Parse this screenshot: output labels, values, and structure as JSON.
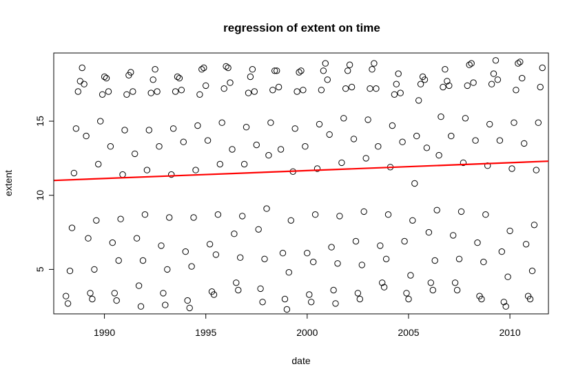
{
  "chart_data": {
    "type": "scatter",
    "title": "regression of extent on time",
    "xlabel": "date",
    "ylabel": "extent",
    "xlim": [
      1987.5,
      2011.9
    ],
    "ylim": [
      2.0,
      19.6
    ],
    "x_ticks": [
      1990,
      1995,
      2000,
      2005,
      2010
    ],
    "y_ticks": [
      5,
      10,
      15
    ],
    "point_style": "open-circle",
    "regression_line": {
      "color": "#ff0000",
      "x": [
        1987.5,
        2011.9
      ],
      "y": [
        11.0,
        12.3
      ]
    },
    "points": [
      [
        1988.1,
        3.2
      ],
      [
        1988.2,
        2.7
      ],
      [
        1988.3,
        4.9
      ],
      [
        1988.4,
        7.8
      ],
      [
        1988.5,
        11.5
      ],
      [
        1988.6,
        14.5
      ],
      [
        1988.7,
        17.0
      ],
      [
        1988.8,
        17.7
      ],
      [
        1988.9,
        18.6
      ],
      [
        1989.0,
        17.5
      ],
      [
        1989.1,
        14.0
      ],
      [
        1989.2,
        7.1
      ],
      [
        1989.3,
        3.4
      ],
      [
        1989.4,
        3.0
      ],
      [
        1989.5,
        5.0
      ],
      [
        1989.6,
        8.3
      ],
      [
        1989.7,
        12.1
      ],
      [
        1989.8,
        15.0
      ],
      [
        1989.9,
        16.8
      ],
      [
        1990.0,
        18.0
      ],
      [
        1990.1,
        17.9
      ],
      [
        1990.2,
        17.0
      ],
      [
        1990.3,
        13.3
      ],
      [
        1990.4,
        6.8
      ],
      [
        1990.5,
        3.4
      ],
      [
        1990.6,
        2.9
      ],
      [
        1990.7,
        5.6
      ],
      [
        1990.8,
        8.4
      ],
      [
        1990.9,
        11.4
      ],
      [
        1991.0,
        14.4
      ],
      [
        1991.1,
        16.8
      ],
      [
        1991.2,
        18.1
      ],
      [
        1991.3,
        18.3
      ],
      [
        1991.4,
        17.0
      ],
      [
        1991.5,
        12.8
      ],
      [
        1991.6,
        7.1
      ],
      [
        1991.7,
        3.9
      ],
      [
        1991.8,
        2.5
      ],
      [
        1991.9,
        5.6
      ],
      [
        1992.0,
        8.7
      ],
      [
        1992.1,
        11.7
      ],
      [
        1992.2,
        14.4
      ],
      [
        1992.3,
        16.9
      ],
      [
        1992.4,
        17.8
      ],
      [
        1992.5,
        18.5
      ],
      [
        1992.6,
        17.0
      ],
      [
        1992.7,
        13.3
      ],
      [
        1992.8,
        6.6
      ],
      [
        1992.9,
        3.4
      ],
      [
        1993.0,
        2.6
      ],
      [
        1993.1,
        5.0
      ],
      [
        1993.2,
        8.5
      ],
      [
        1993.3,
        11.4
      ],
      [
        1993.4,
        14.5
      ],
      [
        1993.5,
        17.0
      ],
      [
        1993.6,
        18.0
      ],
      [
        1993.7,
        17.9
      ],
      [
        1993.8,
        17.1
      ],
      [
        1993.9,
        13.6
      ],
      [
        1994.0,
        6.2
      ],
      [
        1994.1,
        2.9
      ],
      [
        1994.2,
        2.4
      ],
      [
        1994.3,
        5.2
      ],
      [
        1994.4,
        8.5
      ],
      [
        1994.5,
        11.7
      ],
      [
        1994.6,
        14.7
      ],
      [
        1994.7,
        16.8
      ],
      [
        1994.8,
        18.5
      ],
      [
        1994.9,
        18.6
      ],
      [
        1995.0,
        17.4
      ],
      [
        1995.1,
        13.7
      ],
      [
        1995.2,
        6.7
      ],
      [
        1995.3,
        3.5
      ],
      [
        1995.4,
        3.3
      ],
      [
        1995.5,
        6.0
      ],
      [
        1995.6,
        8.7
      ],
      [
        1995.7,
        12.1
      ],
      [
        1995.8,
        14.9
      ],
      [
        1995.9,
        17.2
      ],
      [
        1996.0,
        18.7
      ],
      [
        1996.1,
        18.6
      ],
      [
        1996.2,
        17.6
      ],
      [
        1996.3,
        13.1
      ],
      [
        1996.4,
        7.4
      ],
      [
        1996.5,
        4.1
      ],
      [
        1996.6,
        3.6
      ],
      [
        1996.7,
        5.8
      ],
      [
        1996.8,
        8.6
      ],
      [
        1996.9,
        12.1
      ],
      [
        1997.0,
        14.6
      ],
      [
        1997.1,
        16.9
      ],
      [
        1997.2,
        18.0
      ],
      [
        1997.3,
        18.5
      ],
      [
        1997.4,
        17.0
      ],
      [
        1997.5,
        13.4
      ],
      [
        1997.6,
        7.7
      ],
      [
        1997.7,
        3.7
      ],
      [
        1997.8,
        2.8
      ],
      [
        1997.9,
        5.7
      ],
      [
        1998.0,
        9.1
      ],
      [
        1998.1,
        12.7
      ],
      [
        1998.2,
        14.9
      ],
      [
        1998.3,
        17.1
      ],
      [
        1998.4,
        18.4
      ],
      [
        1998.5,
        18.4
      ],
      [
        1998.6,
        17.3
      ],
      [
        1998.7,
        13.1
      ],
      [
        1998.8,
        6.1
      ],
      [
        1998.9,
        3.0
      ],
      [
        1999.0,
        2.3
      ],
      [
        1999.1,
        4.8
      ],
      [
        1999.2,
        8.3
      ],
      [
        1999.3,
        11.6
      ],
      [
        1999.4,
        14.5
      ],
      [
        1999.5,
        17.0
      ],
      [
        1999.6,
        18.3
      ],
      [
        1999.7,
        18.4
      ],
      [
        1999.8,
        17.1
      ],
      [
        1999.9,
        13.3
      ],
      [
        2000.0,
        6.1
      ],
      [
        2000.1,
        3.3
      ],
      [
        2000.2,
        2.8
      ],
      [
        2000.3,
        5.5
      ],
      [
        2000.4,
        8.7
      ],
      [
        2000.5,
        11.8
      ],
      [
        2000.6,
        14.8
      ],
      [
        2000.7,
        17.1
      ],
      [
        2000.8,
        18.4
      ],
      [
        2000.9,
        18.9
      ],
      [
        2001.0,
        17.8
      ],
      [
        2001.1,
        14.1
      ],
      [
        2001.2,
        6.5
      ],
      [
        2001.3,
        3.6
      ],
      [
        2001.4,
        2.7
      ],
      [
        2001.5,
        5.4
      ],
      [
        2001.6,
        8.6
      ],
      [
        2001.7,
        12.2
      ],
      [
        2001.8,
        15.2
      ],
      [
        2001.9,
        17.2
      ],
      [
        2002.0,
        18.4
      ],
      [
        2002.1,
        18.8
      ],
      [
        2002.2,
        17.3
      ],
      [
        2002.3,
        13.8
      ],
      [
        2002.4,
        6.9
      ],
      [
        2002.5,
        3.4
      ],
      [
        2002.6,
        3.0
      ],
      [
        2002.7,
        5.3
      ],
      [
        2002.8,
        8.9
      ],
      [
        2002.9,
        12.5
      ],
      [
        2003.0,
        15.1
      ],
      [
        2003.1,
        17.2
      ],
      [
        2003.2,
        18.5
      ],
      [
        2003.3,
        18.9
      ],
      [
        2003.4,
        17.2
      ],
      [
        2003.5,
        13.3
      ],
      [
        2003.6,
        6.6
      ],
      [
        2003.7,
        4.1
      ],
      [
        2003.8,
        3.8
      ],
      [
        2003.9,
        5.7
      ],
      [
        2004.0,
        8.7
      ],
      [
        2004.1,
        11.9
      ],
      [
        2004.2,
        14.7
      ],
      [
        2004.3,
        16.8
      ],
      [
        2004.4,
        17.5
      ],
      [
        2004.5,
        18.2
      ],
      [
        2004.6,
        16.9
      ],
      [
        2004.7,
        13.6
      ],
      [
        2004.8,
        6.9
      ],
      [
        2004.9,
        3.4
      ],
      [
        2005.0,
        3.0
      ],
      [
        2005.1,
        4.6
      ],
      [
        2005.2,
        8.3
      ],
      [
        2005.3,
        10.8
      ],
      [
        2005.4,
        14.0
      ],
      [
        2005.5,
        16.4
      ],
      [
        2005.6,
        17.5
      ],
      [
        2005.7,
        18.0
      ],
      [
        2005.8,
        17.8
      ],
      [
        2005.9,
        13.2
      ],
      [
        2006.0,
        7.5
      ],
      [
        2006.1,
        4.1
      ],
      [
        2006.2,
        3.6
      ],
      [
        2006.3,
        5.6
      ],
      [
        2006.4,
        9.0
      ],
      [
        2006.5,
        12.7
      ],
      [
        2006.6,
        15.3
      ],
      [
        2006.7,
        17.3
      ],
      [
        2006.8,
        18.5
      ],
      [
        2006.9,
        17.7
      ],
      [
        2007.0,
        17.4
      ],
      [
        2007.1,
        14.0
      ],
      [
        2007.2,
        7.3
      ],
      [
        2007.3,
        4.1
      ],
      [
        2007.4,
        3.6
      ],
      [
        2007.5,
        5.7
      ],
      [
        2007.6,
        8.9
      ],
      [
        2007.7,
        12.2
      ],
      [
        2007.8,
        15.2
      ],
      [
        2007.9,
        17.4
      ],
      [
        2008.0,
        18.8
      ],
      [
        2008.1,
        18.9
      ],
      [
        2008.2,
        17.6
      ],
      [
        2008.3,
        13.7
      ],
      [
        2008.4,
        6.8
      ],
      [
        2008.5,
        3.2
      ],
      [
        2008.6,
        3.0
      ],
      [
        2008.7,
        5.5
      ],
      [
        2008.8,
        8.7
      ],
      [
        2008.9,
        12.0
      ],
      [
        2009.0,
        14.8
      ],
      [
        2009.1,
        17.5
      ],
      [
        2009.2,
        18.2
      ],
      [
        2009.3,
        19.1
      ],
      [
        2009.4,
        17.8
      ],
      [
        2009.5,
        13.7
      ],
      [
        2009.6,
        6.2
      ],
      [
        2009.7,
        2.8
      ],
      [
        2009.8,
        2.5
      ],
      [
        2009.9,
        4.5
      ],
      [
        2010.0,
        7.6
      ],
      [
        2010.1,
        11.8
      ],
      [
        2010.2,
        14.9
      ],
      [
        2010.3,
        17.1
      ],
      [
        2010.4,
        18.9
      ],
      [
        2010.5,
        19.0
      ],
      [
        2010.6,
        17.9
      ],
      [
        2010.7,
        13.5
      ],
      [
        2010.8,
        6.7
      ],
      [
        2010.9,
        3.2
      ],
      [
        2011.0,
        3.0
      ],
      [
        2011.1,
        4.9
      ],
      [
        2011.2,
        8.0
      ],
      [
        2011.3,
        11.7
      ],
      [
        2011.4,
        14.9
      ],
      [
        2011.5,
        17.3
      ],
      [
        2011.6,
        18.6
      ]
    ]
  }
}
